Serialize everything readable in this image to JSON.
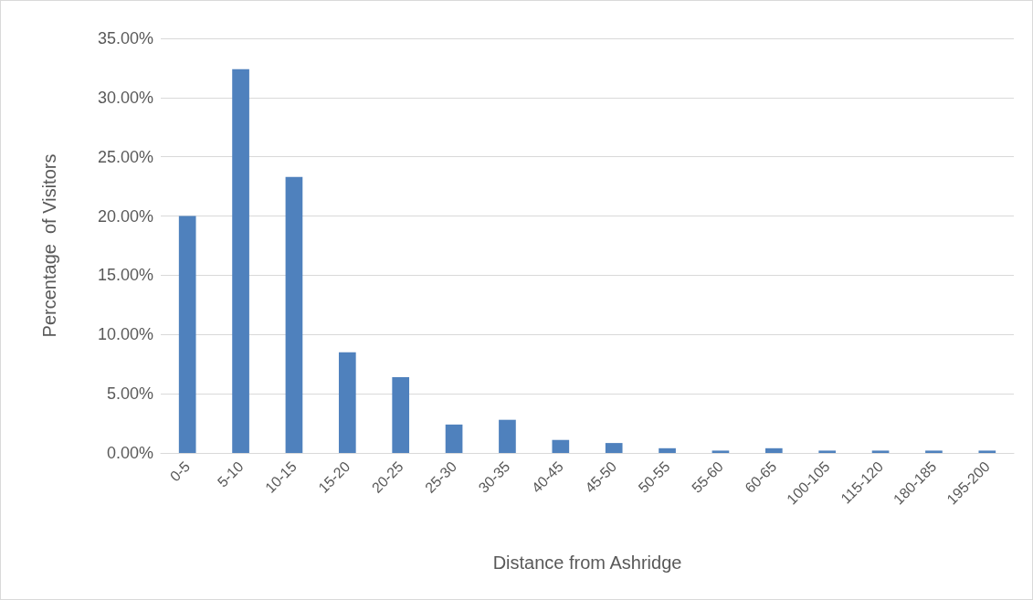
{
  "chart_data": {
    "type": "bar",
    "xlabel": "Distance from Ashridge",
    "ylabel": "Percentage  of Visitors",
    "categories": [
      "0-5",
      "5-10",
      "10-15",
      "15-20",
      "20-25",
      "25-30",
      "30-35",
      "40-45",
      "45-50",
      "50-55",
      "55-60",
      "60-65",
      "100-105",
      "115-120",
      "180-185",
      "195-200"
    ],
    "values": [
      20.0,
      32.4,
      23.3,
      8.5,
      6.4,
      2.4,
      2.8,
      1.1,
      0.84,
      0.4,
      0.2,
      0.4,
      0.2,
      0.2,
      0.2,
      0.2
    ],
    "color": "#4f81bd",
    "ylim": [
      0,
      35
    ],
    "yticks": [
      {
        "value": 0,
        "label": "0.00%"
      },
      {
        "value": 5,
        "label": "5.00%"
      },
      {
        "value": 10,
        "label": "10.00%"
      },
      {
        "value": 15,
        "label": "15.00%"
      },
      {
        "value": 20,
        "label": "20.00%"
      },
      {
        "value": 25,
        "label": "25.00%"
      },
      {
        "value": 30,
        "label": "30.00%"
      },
      {
        "value": 35,
        "label": "35.00%"
      }
    ],
    "grid": "y"
  }
}
